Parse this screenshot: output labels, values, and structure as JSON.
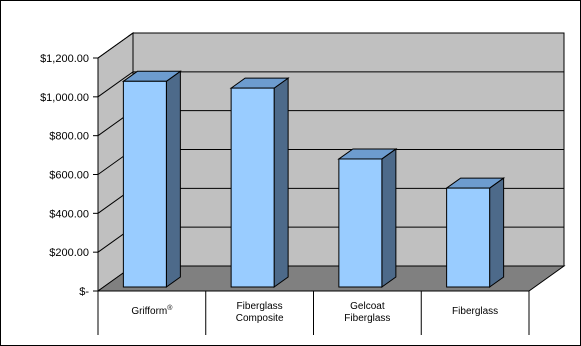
{
  "chart_data": {
    "type": "bar",
    "style": "3d-column",
    "categories": [
      {
        "lines": [
          "Grifform"
        ],
        "superscript": "®"
      },
      {
        "lines": [
          "Fiberglass",
          "Composite"
        ]
      },
      {
        "lines": [
          "Gelcoat",
          "Fiberglass"
        ]
      },
      {
        "lines": [
          "Fiberglass"
        ]
      }
    ],
    "values": [
      1080,
      1045,
      680,
      530
    ],
    "y_ticks": [
      {
        "value": 0,
        "label": "$-"
      },
      {
        "value": 200,
        "label": "$200.00"
      },
      {
        "value": 400,
        "label": "$400.00"
      },
      {
        "value": 600,
        "label": "$600.00"
      },
      {
        "value": 800,
        "label": "$800.00"
      },
      {
        "value": 1000,
        "label": "$1,000.00"
      },
      {
        "value": 1200,
        "label": "$1,200.00"
      }
    ],
    "ylim": [
      0,
      1200
    ],
    "grid": true,
    "legend": "none",
    "colors": {
      "bar_front": "#99ccff",
      "bar_side": "#4d6a8a",
      "bar_top": "#6d9ccf",
      "back_wall": "#c0c0c0",
      "floor": "#808080",
      "grid": "#000000"
    }
  }
}
